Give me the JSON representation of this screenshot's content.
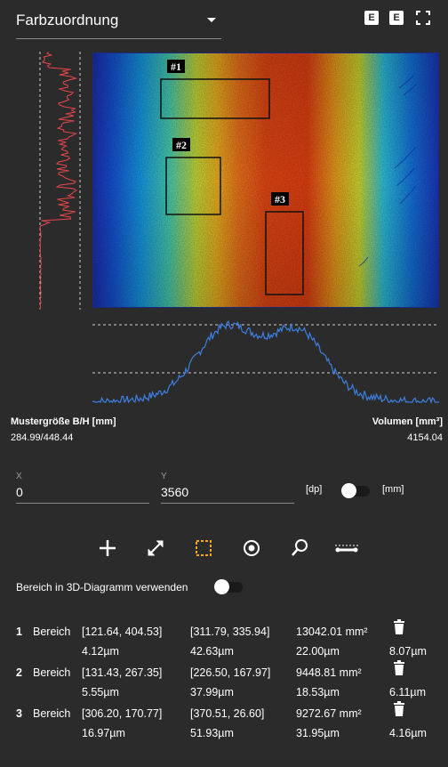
{
  "header": {
    "dropdown_label": "Farbzuordnung",
    "btn1": "E",
    "btn2": "E"
  },
  "rois": [
    {
      "label": "#1"
    },
    {
      "label": "#2"
    },
    {
      "label": "#3"
    }
  ],
  "stats": {
    "size_label": "Mustergröße B/H [mm]",
    "size_value": "284.99/448.44",
    "volume_label": "Volumen [mm³]",
    "volume_value": "4154.04"
  },
  "coords": {
    "x_label": "X",
    "x_value": "0",
    "y_label": "Y",
    "y_value": "3560",
    "unit_left": "[dp]",
    "unit_right": "[mm]"
  },
  "tools": [
    {
      "name": "plus-icon"
    },
    {
      "name": "resize-diagonal-icon"
    },
    {
      "name": "select-rectangle-icon",
      "color": "#f5a623"
    },
    {
      "name": "target-icon"
    },
    {
      "name": "zoom-icon"
    },
    {
      "name": "profile-line-icon"
    }
  ],
  "toggle3d": {
    "label": "Bereich in 3D-Diagramm verwenden"
  },
  "areas": [
    {
      "num": "1",
      "label": "Bereich",
      "p1": "[121.64, 404.53]",
      "p2": "[311.79, 335.94]",
      "area": "13042.01 mm²",
      "v1": "4.12µm",
      "v2": "42.63µm",
      "v3": "22.00µm",
      "v4": "8.07µm"
    },
    {
      "num": "2",
      "label": "Bereich",
      "p1": "[131.43, 267.35]",
      "p2": "[226.50, 167.97]",
      "area": "9448.81 mm²",
      "v1": "5.55µm",
      "v2": "37.99µm",
      "v3": "18.53µm",
      "v4": "6.11µm"
    },
    {
      "num": "3",
      "label": "Bereich",
      "p1": "[306.20, 170.77]",
      "p2": "[370.51, 26.60]",
      "area": "9272.67 mm²",
      "v1": "16.97µm",
      "v2": "51.93µm",
      "v3": "31.95µm",
      "v4": "4.16µm"
    }
  ],
  "colors": {
    "background": "#2b2b2b",
    "profile_vertical": "#e8474b",
    "profile_horizontal": "#3d7fe0",
    "accent": "#f5a623"
  }
}
